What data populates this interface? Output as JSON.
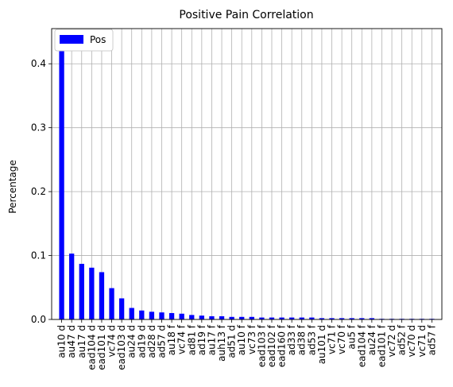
{
  "chart_data": {
    "type": "bar",
    "title": "Positive Pain Correlation",
    "xlabel": "",
    "ylabel": "Percentage",
    "ylim": [
      0,
      0.455
    ],
    "yticks": [
      0.0,
      0.1,
      0.2,
      0.3,
      0.4
    ],
    "ytick_labels": [
      "0.0",
      "0.1",
      "0.2",
      "0.3",
      "0.4"
    ],
    "grid": true,
    "legend_position": "top-left",
    "bar_color": "#0000ff",
    "categories": [
      "au10 d",
      "au47 d",
      "au17 d",
      "ead104 d",
      "ead101 d",
      "vc74 d",
      "ead103 d",
      "au24 d",
      "ad19 d",
      "ad28 d",
      "ad57 d",
      "au18 f",
      "vc74 f",
      "ad81 f",
      "ad19 f",
      "au17 f",
      "auh13 f",
      "ad51 d",
      "au10 f",
      "vc73 f",
      "ead103 f",
      "ead102 f",
      "ead160 f",
      "ad33 f",
      "ad38 f",
      "ad53 f",
      "au101 d",
      "vc71 f",
      "vc70 f",
      "au5 f",
      "ead104 f",
      "au24 f",
      "ead101 f",
      "vc72 d",
      "ad52 f",
      "vc70 d",
      "vc71 d",
      "ad57 f"
    ],
    "series": [
      {
        "name": "Pos",
        "values": [
          0.432,
          0.103,
          0.087,
          0.081,
          0.074,
          0.049,
          0.033,
          0.018,
          0.014,
          0.012,
          0.011,
          0.01,
          0.009,
          0.007,
          0.006,
          0.005,
          0.005,
          0.004,
          0.004,
          0.004,
          0.003,
          0.003,
          0.003,
          0.003,
          0.003,
          0.003,
          0.002,
          0.002,
          0.002,
          0.002,
          0.002,
          0.002,
          0.001,
          0.001,
          0.001,
          0.001,
          0.001,
          0.001
        ]
      }
    ]
  }
}
